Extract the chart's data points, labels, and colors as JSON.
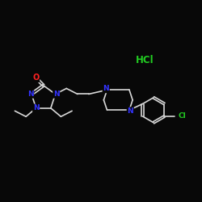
{
  "background_color": "#080808",
  "bond_color": "#d8d8d8",
  "atom_colors": {
    "N": "#3333ff",
    "O": "#ff2222",
    "Cl": "#22cc22",
    "C": "#d8d8d8"
  },
  "bond_width": 1.2,
  "font_size_atom": 6.5,
  "HCl_color": "#22cc22",
  "scale": 1.0
}
